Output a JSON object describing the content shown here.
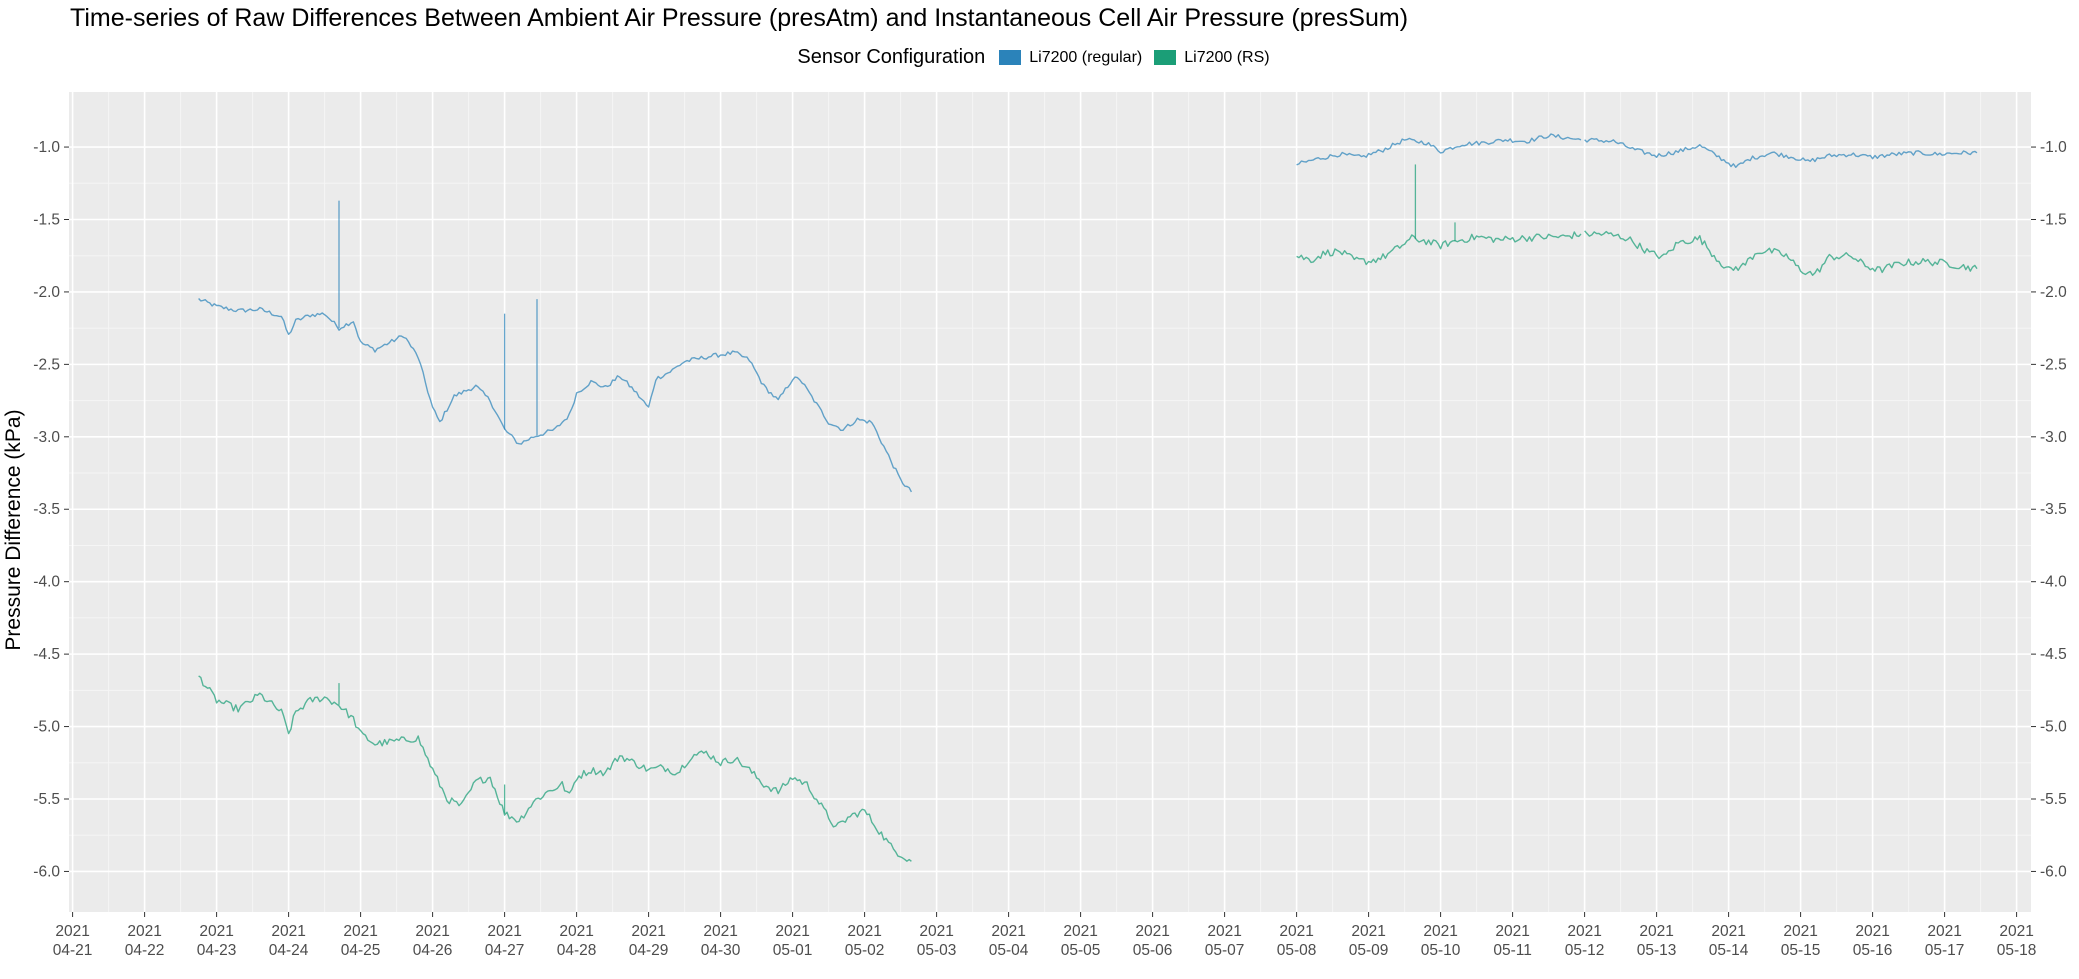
{
  "chart_data": {
    "type": "line",
    "title": "Time-series of Raw Differences Between Ambient Air Pressure (presAtm) and Instantaneous Cell Air Pressure (presSum)",
    "xlabel": "",
    "ylabel": "Pressure Difference (kPa)",
    "ylim": [
      -6.28,
      -0.62
    ],
    "xlim_days": [
      -0.05,
      27.2
    ],
    "y_ticks": [
      -1.0,
      -1.5,
      -2.0,
      -2.5,
      -3.0,
      -3.5,
      -4.0,
      -4.5,
      -5.0,
      -5.5,
      -6.0
    ],
    "y_tick_labels": [
      "-1.0",
      "-1.5",
      "-2.0",
      "-2.5",
      "-3.0",
      "-3.5",
      "-4.0",
      "-4.5",
      "-5.0",
      "-5.5",
      "-6.0"
    ],
    "x_ticks": [
      {
        "year": "2021",
        "date": "04-21"
      },
      {
        "year": "2021",
        "date": "04-22"
      },
      {
        "year": "2021",
        "date": "04-23"
      },
      {
        "year": "2021",
        "date": "04-24"
      },
      {
        "year": "2021",
        "date": "04-25"
      },
      {
        "year": "2021",
        "date": "04-26"
      },
      {
        "year": "2021",
        "date": "04-27"
      },
      {
        "year": "2021",
        "date": "04-28"
      },
      {
        "year": "2021",
        "date": "04-29"
      },
      {
        "year": "2021",
        "date": "04-30"
      },
      {
        "year": "2021",
        "date": "05-01"
      },
      {
        "year": "2021",
        "date": "05-02"
      },
      {
        "year": "2021",
        "date": "05-03"
      },
      {
        "year": "2021",
        "date": "05-04"
      },
      {
        "year": "2021",
        "date": "05-05"
      },
      {
        "year": "2021",
        "date": "05-06"
      },
      {
        "year": "2021",
        "date": "05-07"
      },
      {
        "year": "2021",
        "date": "05-08"
      },
      {
        "year": "2021",
        "date": "05-09"
      },
      {
        "year": "2021",
        "date": "05-10"
      },
      {
        "year": "2021",
        "date": "05-11"
      },
      {
        "year": "2021",
        "date": "05-12"
      },
      {
        "year": "2021",
        "date": "05-13"
      },
      {
        "year": "2021",
        "date": "05-14"
      },
      {
        "year": "2021",
        "date": "05-15"
      },
      {
        "year": "2021",
        "date": "05-16"
      },
      {
        "year": "2021",
        "date": "05-17"
      },
      {
        "year": "2021",
        "date": "05-18"
      }
    ],
    "grid": true,
    "legend_position": "top",
    "legend_title": "Sensor Configuration",
    "series": [
      {
        "name": "Li7200 (regular)",
        "color": "#2b83ba",
        "segments": [
          [
            [
              1.75,
              -2.05
            ],
            [
              2.0,
              -2.1
            ],
            [
              2.3,
              -2.13
            ],
            [
              2.6,
              -2.12
            ],
            [
              2.9,
              -2.17
            ],
            [
              3.0,
              -2.3
            ],
            [
              3.1,
              -2.2
            ],
            [
              3.3,
              -2.16
            ],
            [
              3.5,
              -2.15
            ],
            [
              3.7,
              -2.25
            ],
            [
              3.9,
              -2.2
            ],
            [
              4.0,
              -2.35
            ],
            [
              4.2,
              -2.4
            ],
            [
              4.4,
              -2.35
            ],
            [
              4.6,
              -2.3
            ],
            [
              4.8,
              -2.45
            ],
            [
              5.0,
              -2.8
            ],
            [
              5.1,
              -2.9
            ],
            [
              5.3,
              -2.72
            ],
            [
              5.6,
              -2.65
            ],
            [
              5.8,
              -2.75
            ],
            [
              6.0,
              -2.95
            ],
            [
              6.2,
              -3.05
            ],
            [
              6.4,
              -3.0
            ],
            [
              6.7,
              -2.95
            ],
            [
              6.9,
              -2.85
            ],
            [
              7.0,
              -2.7
            ],
            [
              7.2,
              -2.62
            ],
            [
              7.4,
              -2.66
            ],
            [
              7.6,
              -2.58
            ],
            [
              7.8,
              -2.68
            ],
            [
              8.0,
              -2.8
            ],
            [
              8.1,
              -2.6
            ],
            [
              8.3,
              -2.55
            ],
            [
              8.5,
              -2.48
            ],
            [
              8.7,
              -2.46
            ],
            [
              8.9,
              -2.44
            ],
            [
              9.2,
              -2.42
            ],
            [
              9.4,
              -2.47
            ],
            [
              9.6,
              -2.65
            ],
            [
              9.8,
              -2.75
            ],
            [
              10.0,
              -2.6
            ],
            [
              10.1,
              -2.6
            ],
            [
              10.3,
              -2.75
            ],
            [
              10.5,
              -2.9
            ],
            [
              10.7,
              -2.95
            ],
            [
              10.9,
              -2.88
            ],
            [
              11.1,
              -2.9
            ],
            [
              11.3,
              -3.1
            ],
            [
              11.5,
              -3.3
            ],
            [
              11.65,
              -3.38
            ]
          ],
          [
            [
              17.0,
              -1.12
            ],
            [
              17.3,
              -1.08
            ],
            [
              17.6,
              -1.05
            ],
            [
              17.9,
              -1.07
            ],
            [
              18.2,
              -1.02
            ],
            [
              18.5,
              -0.95
            ],
            [
              18.8,
              -0.97
            ],
            [
              19.0,
              -1.03
            ],
            [
              19.3,
              -0.98
            ],
            [
              19.6,
              -0.97
            ],
            [
              19.9,
              -0.95
            ],
            [
              20.2,
              -0.96
            ],
            [
              20.5,
              -0.92
            ],
            [
              20.8,
              -0.94
            ],
            [
              20.95,
              -0.95
            ]
          ],
          [
            [
              21.0,
              -0.95
            ],
            [
              21.4,
              -0.96
            ],
            [
              21.7,
              -1.02
            ],
            [
              22.0,
              -1.06
            ],
            [
              22.3,
              -1.03
            ],
            [
              22.6,
              -0.99
            ],
            [
              22.9,
              -1.08
            ],
            [
              23.1,
              -1.14
            ],
            [
              23.3,
              -1.08
            ],
            [
              23.6,
              -1.04
            ],
            [
              23.9,
              -1.07
            ],
            [
              24.1,
              -1.1
            ],
            [
              24.4,
              -1.06
            ],
            [
              24.7,
              -1.05
            ],
            [
              25.0,
              -1.07
            ],
            [
              25.3,
              -1.05
            ],
            [
              25.6,
              -1.04
            ],
            [
              25.9,
              -1.05
            ],
            [
              26.2,
              -1.04
            ],
            [
              26.45,
              -1.04
            ]
          ]
        ],
        "spikes": [
          [
            3.7,
            -1.37
          ],
          [
            6.0,
            -2.15
          ],
          [
            6.45,
            -2.05
          ]
        ]
      },
      {
        "name": "Li7200 (RS)",
        "color": "#1b9e77",
        "segments": [
          [
            [
              1.75,
              -4.65
            ],
            [
              2.0,
              -4.82
            ],
            [
              2.3,
              -4.88
            ],
            [
              2.6,
              -4.78
            ],
            [
              2.9,
              -4.9
            ],
            [
              3.0,
              -5.05
            ],
            [
              3.1,
              -4.9
            ],
            [
              3.3,
              -4.82
            ],
            [
              3.5,
              -4.8
            ],
            [
              3.7,
              -4.85
            ],
            [
              3.9,
              -4.95
            ],
            [
              4.0,
              -5.05
            ],
            [
              4.2,
              -5.12
            ],
            [
              4.5,
              -5.1
            ],
            [
              4.8,
              -5.08
            ],
            [
              5.0,
              -5.3
            ],
            [
              5.2,
              -5.5
            ],
            [
              5.4,
              -5.55
            ],
            [
              5.6,
              -5.38
            ],
            [
              5.8,
              -5.35
            ],
            [
              6.0,
              -5.6
            ],
            [
              6.2,
              -5.65
            ],
            [
              6.4,
              -5.52
            ],
            [
              6.6,
              -5.45
            ],
            [
              6.8,
              -5.4
            ],
            [
              6.9,
              -5.48
            ],
            [
              7.0,
              -5.35
            ],
            [
              7.2,
              -5.3
            ],
            [
              7.4,
              -5.32
            ],
            [
              7.6,
              -5.2
            ],
            [
              7.8,
              -5.25
            ],
            [
              8.0,
              -5.3
            ],
            [
              8.2,
              -5.28
            ],
            [
              8.4,
              -5.32
            ],
            [
              8.6,
              -5.2
            ],
            [
              8.8,
              -5.18
            ],
            [
              9.0,
              -5.25
            ],
            [
              9.2,
              -5.22
            ],
            [
              9.4,
              -5.3
            ],
            [
              9.6,
              -5.4
            ],
            [
              9.8,
              -5.45
            ],
            [
              10.0,
              -5.35
            ],
            [
              10.2,
              -5.4
            ],
            [
              10.4,
              -5.55
            ],
            [
              10.6,
              -5.7
            ],
            [
              10.8,
              -5.62
            ],
            [
              11.0,
              -5.58
            ],
            [
              11.2,
              -5.72
            ],
            [
              11.4,
              -5.85
            ],
            [
              11.65,
              -5.93
            ]
          ],
          [
            [
              17.0,
              -1.75
            ],
            [
              17.2,
              -1.78
            ],
            [
              17.4,
              -1.73
            ],
            [
              17.6,
              -1.72
            ],
            [
              17.8,
              -1.78
            ],
            [
              18.0,
              -1.79
            ],
            [
              18.2,
              -1.76
            ],
            [
              18.4,
              -1.7
            ],
            [
              18.6,
              -1.63
            ],
            [
              18.8,
              -1.65
            ],
            [
              19.0,
              -1.68
            ],
            [
              19.2,
              -1.65
            ],
            [
              19.5,
              -1.62
            ],
            [
              19.8,
              -1.64
            ],
            [
              20.1,
              -1.63
            ],
            [
              20.4,
              -1.62
            ],
            [
              20.7,
              -1.62
            ],
            [
              20.95,
              -1.6
            ]
          ],
          [
            [
              21.0,
              -1.6
            ],
            [
              21.3,
              -1.6
            ],
            [
              21.6,
              -1.63
            ],
            [
              21.9,
              -1.73
            ],
            [
              22.1,
              -1.76
            ],
            [
              22.3,
              -1.66
            ],
            [
              22.6,
              -1.63
            ],
            [
              22.8,
              -1.75
            ],
            [
              23.0,
              -1.85
            ],
            [
              23.2,
              -1.82
            ],
            [
              23.4,
              -1.72
            ],
            [
              23.6,
              -1.72
            ],
            [
              23.8,
              -1.75
            ],
            [
              24.0,
              -1.85
            ],
            [
              24.2,
              -1.88
            ],
            [
              24.4,
              -1.76
            ],
            [
              24.7,
              -1.75
            ],
            [
              24.9,
              -1.82
            ],
            [
              25.1,
              -1.85
            ],
            [
              25.4,
              -1.8
            ],
            [
              25.7,
              -1.79
            ],
            [
              26.0,
              -1.8
            ],
            [
              26.2,
              -1.82
            ],
            [
              26.45,
              -1.84
            ]
          ]
        ],
        "spikes": [
          [
            3.7,
            -4.7
          ],
          [
            6.0,
            -5.4
          ],
          [
            18.65,
            -1.12
          ],
          [
            19.2,
            -1.52
          ]
        ]
      }
    ]
  }
}
